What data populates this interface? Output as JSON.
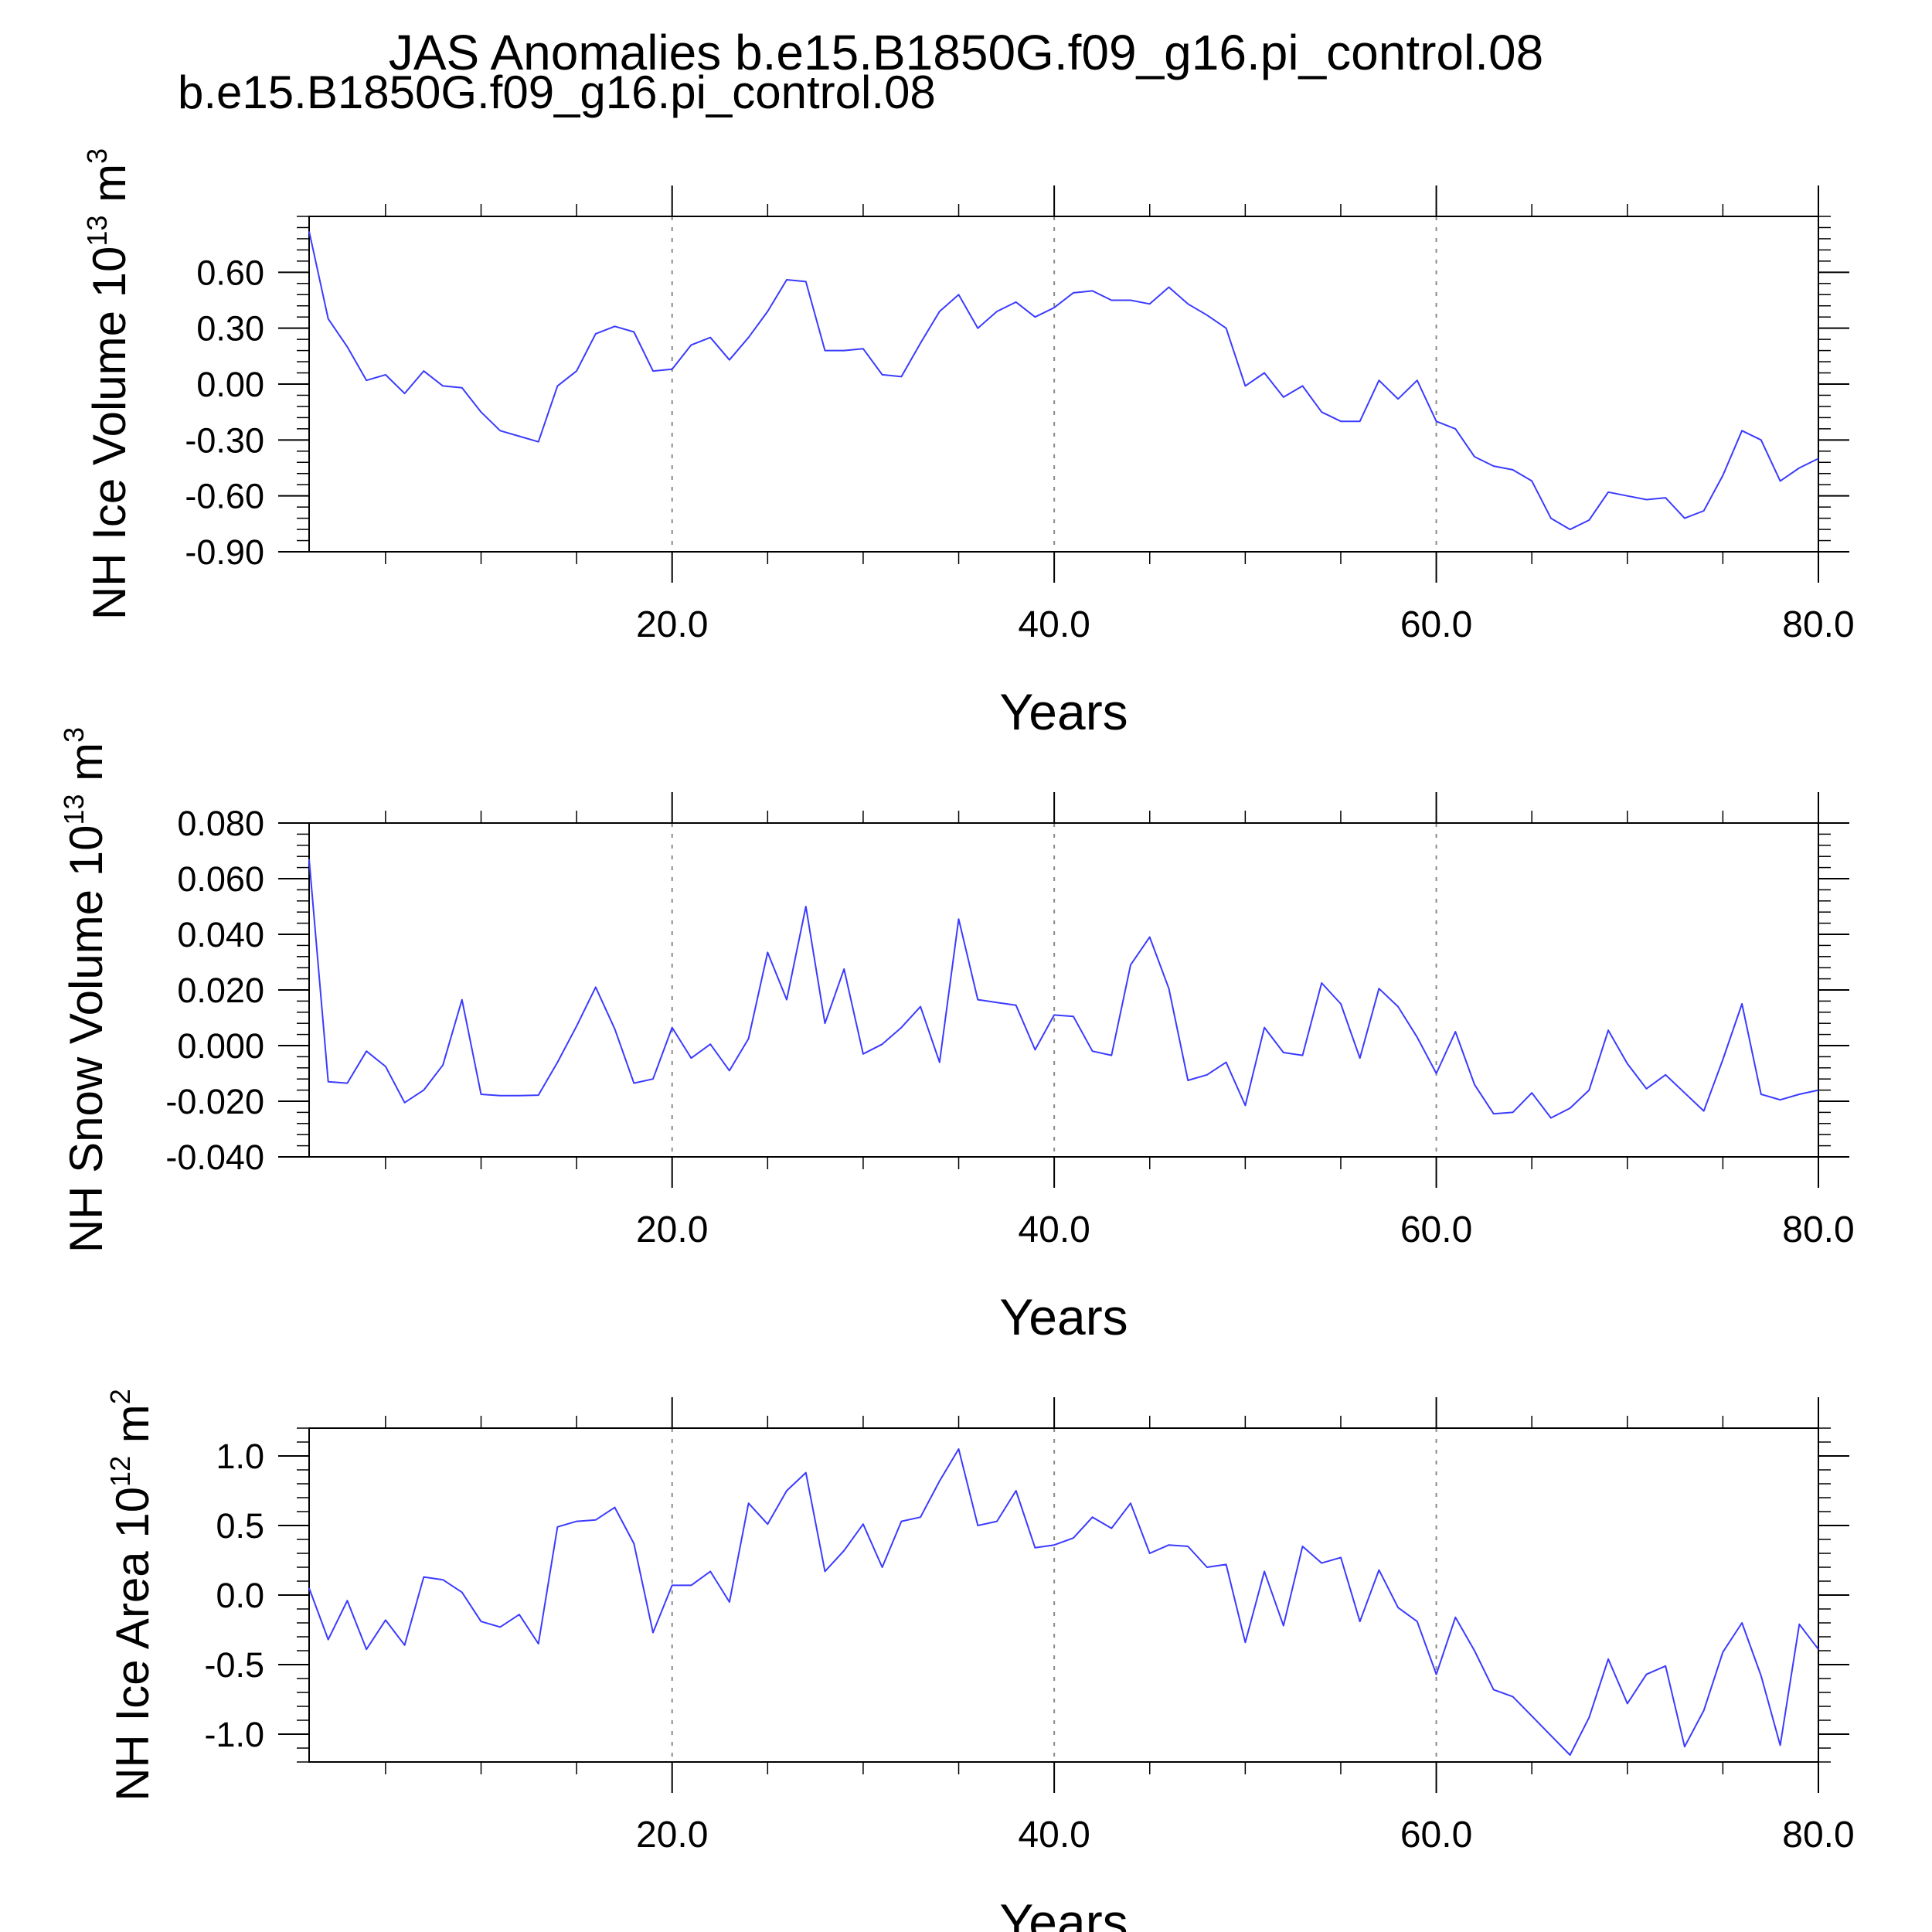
{
  "header": {
    "title": "JAS Anomalies b.e15.B1850G.f09_g16.pi_control.08",
    "subtitle": "b.e15.B1850G.f09_g16.pi_control.08",
    "subtitle_color": "#0000ff"
  },
  "colors": {
    "series": "#3b3bff",
    "grid": "#8a8a8a",
    "frame": "#000000"
  },
  "chart_data": [
    {
      "type": "line",
      "ylabel_main": "NH Ice Volume 10",
      "ylabel_exp": "13",
      "ylabel_unit": " m",
      "ylabel_unit_exp": "3",
      "xlabel": "Years",
      "xlim": [
        1,
        80
      ],
      "ylim": [
        -0.9,
        0.9
      ],
      "yticks": [
        -0.9,
        -0.6,
        -0.3,
        0.0,
        0.3,
        0.6
      ],
      "ytick_labels": [
        "-0.90",
        "-0.60",
        "-0.30",
        "0.00",
        "0.30",
        "0.60"
      ],
      "ytick_minor": 0.06,
      "xticks": [
        20,
        40,
        60,
        80
      ],
      "xtick_labels": [
        "20.0",
        "40.0",
        "60.0",
        "80.0"
      ],
      "xtick_minor": 5,
      "grid_x": [
        20,
        40,
        60
      ],
      "x": [
        1,
        2,
        3,
        4,
        5,
        6,
        7,
        8,
        9,
        10,
        11,
        12,
        13,
        14,
        15,
        16,
        17,
        18,
        19,
        20,
        21,
        22,
        23,
        24,
        25,
        26,
        27,
        28,
        29,
        30,
        31,
        32,
        33,
        34,
        35,
        36,
        37,
        38,
        39,
        40,
        41,
        42,
        43,
        44,
        45,
        46,
        47,
        48,
        49,
        50,
        51,
        52,
        53,
        54,
        55,
        56,
        57,
        58,
        59,
        60,
        61,
        62,
        63,
        64,
        65,
        66,
        67,
        68,
        69,
        70,
        71,
        72,
        73,
        74,
        75,
        76,
        77,
        78,
        79,
        80
      ],
      "series": [
        {
          "values": [
            0.82,
            0.35,
            0.2,
            0.02,
            0.05,
            -0.05,
            0.07,
            -0.01,
            -0.02,
            -0.15,
            -0.25,
            -0.28,
            -0.31,
            -0.01,
            0.07,
            0.27,
            0.31,
            0.28,
            0.07,
            0.08,
            0.21,
            0.25,
            0.13,
            0.25,
            0.39,
            0.56,
            0.55,
            0.18,
            0.18,
            0.19,
            0.05,
            0.04,
            0.22,
            0.39,
            0.48,
            0.3,
            0.39,
            0.44,
            0.36,
            0.41,
            0.49,
            0.5,
            0.45,
            0.45,
            0.43,
            0.52,
            0.43,
            0.37,
            0.3,
            -0.01,
            0.06,
            -0.07,
            -0.01,
            -0.15,
            -0.2,
            -0.2,
            0.02,
            -0.08,
            0.02,
            -0.2,
            -0.24,
            -0.39,
            -0.44,
            -0.46,
            -0.52,
            -0.72,
            -0.78,
            -0.73,
            -0.58,
            -0.6,
            -0.62,
            -0.61,
            -0.72,
            -0.68,
            -0.49,
            -0.25,
            -0.3,
            -0.52,
            -0.45,
            -0.4
          ]
        }
      ]
    },
    {
      "type": "line",
      "ylabel_main": "NH Snow Volume 10",
      "ylabel_exp": "13",
      "ylabel_unit": " m",
      "ylabel_unit_exp": "3",
      "xlabel": "Years",
      "xlim": [
        1,
        80
      ],
      "ylim": [
        -0.04,
        0.08
      ],
      "yticks": [
        -0.04,
        -0.02,
        0.0,
        0.02,
        0.04,
        0.06,
        0.08
      ],
      "ytick_labels": [
        "-0.040",
        "-0.020",
        "0.000",
        "0.020",
        "0.040",
        "0.060",
        "0.080"
      ],
      "ytick_minor": 0.004,
      "xticks": [
        20,
        40,
        60,
        80
      ],
      "xtick_labels": [
        "20.0",
        "40.0",
        "60.0",
        "80.0"
      ],
      "xtick_minor": 5,
      "grid_x": [
        20,
        40,
        60
      ],
      "x": [
        1,
        2,
        3,
        4,
        5,
        6,
        7,
        8,
        9,
        10,
        11,
        12,
        13,
        14,
        15,
        16,
        17,
        18,
        19,
        20,
        21,
        22,
        23,
        24,
        25,
        26,
        27,
        28,
        29,
        30,
        31,
        32,
        33,
        34,
        35,
        36,
        37,
        38,
        39,
        40,
        41,
        42,
        43,
        44,
        45,
        46,
        47,
        48,
        49,
        50,
        51,
        52,
        53,
        54,
        55,
        56,
        57,
        58,
        59,
        60,
        61,
        62,
        63,
        64,
        65,
        66,
        67,
        68,
        69,
        70,
        71,
        72,
        73,
        74,
        75,
        76,
        77,
        78,
        79,
        80
      ],
      "series": [
        {
          "values": [
            0.067,
            -0.013,
            -0.0135,
            -0.002,
            -0.0075,
            -0.0205,
            -0.016,
            -0.007,
            0.0165,
            -0.0175,
            -0.018,
            -0.018,
            -0.0178,
            -0.006,
            0.007,
            0.021,
            0.006,
            -0.0135,
            -0.012,
            0.0065,
            -0.0045,
            0.0005,
            -0.009,
            0.0025,
            0.0335,
            0.0165,
            0.05,
            0.008,
            0.0275,
            -0.003,
            0.0005,
            0.0065,
            0.014,
            -0.006,
            0.0455,
            0.0165,
            0.0155,
            0.0145,
            -0.0015,
            0.011,
            0.0105,
            -0.002,
            -0.0035,
            0.029,
            0.039,
            0.0205,
            -0.0125,
            -0.0105,
            -0.006,
            -0.0215,
            0.0065,
            -0.0025,
            -0.0035,
            0.0225,
            0.015,
            -0.0045,
            0.0205,
            0.014,
            0.003,
            -0.01,
            0.005,
            -0.014,
            -0.0245,
            -0.024,
            -0.017,
            -0.026,
            -0.0225,
            -0.016,
            0.0055,
            -0.0065,
            -0.0155,
            -0.0105,
            -0.017,
            -0.0235,
            -0.005,
            0.015,
            -0.0175,
            -0.0195,
            -0.0175,
            -0.016
          ]
        }
      ]
    },
    {
      "type": "line",
      "ylabel_main": "NH Ice Area 10",
      "ylabel_exp": "12",
      "ylabel_unit": " m",
      "ylabel_unit_exp": "2",
      "xlabel": "Years",
      "xlim": [
        1,
        80
      ],
      "ylim": [
        -1.2,
        1.2
      ],
      "yticks": [
        -1.0,
        -0.5,
        0.0,
        0.5,
        1.0
      ],
      "ytick_labels": [
        "-1.0",
        "-0.5",
        "0.0",
        "0.5",
        "1.0"
      ],
      "ytick_minor": 0.1,
      "xticks": [
        20,
        40,
        60,
        80
      ],
      "xtick_labels": [
        "20.0",
        "40.0",
        "60.0",
        "80.0"
      ],
      "xtick_minor": 5,
      "grid_x": [
        20,
        40,
        60
      ],
      "x": [
        1,
        2,
        3,
        4,
        5,
        6,
        7,
        8,
        9,
        10,
        11,
        12,
        13,
        14,
        15,
        16,
        17,
        18,
        19,
        20,
        21,
        22,
        23,
        24,
        25,
        26,
        27,
        28,
        29,
        30,
        31,
        32,
        33,
        34,
        35,
        36,
        37,
        38,
        39,
        40,
        41,
        42,
        43,
        44,
        45,
        46,
        47,
        48,
        49,
        50,
        51,
        52,
        53,
        54,
        55,
        56,
        57,
        58,
        59,
        60,
        61,
        62,
        63,
        64,
        65,
        66,
        67,
        68,
        69,
        70,
        71,
        72,
        73,
        74,
        75,
        76,
        77,
        78,
        79,
        80
      ],
      "series": [
        {
          "values": [
            0.05,
            -0.32,
            -0.04,
            -0.39,
            -0.18,
            -0.36,
            0.13,
            0.11,
            0.02,
            -0.19,
            -0.23,
            -0.14,
            -0.35,
            0.49,
            0.53,
            0.54,
            0.63,
            0.37,
            -0.27,
            0.07,
            0.07,
            0.17,
            -0.05,
            0.66,
            0.51,
            0.75,
            0.88,
            0.17,
            0.32,
            0.51,
            0.2,
            0.53,
            0.56,
            0.82,
            1.05,
            0.5,
            0.53,
            0.75,
            0.34,
            0.36,
            0.41,
            0.56,
            0.48,
            0.66,
            0.3,
            0.36,
            0.35,
            0.2,
            0.22,
            -0.34,
            0.17,
            -0.22,
            0.35,
            0.23,
            0.27,
            -0.19,
            0.18,
            -0.09,
            -0.19,
            -0.57,
            -0.16,
            -0.4,
            -0.68,
            -0.73,
            -0.87,
            -1.01,
            -1.15,
            -0.88,
            -0.46,
            -0.78,
            -0.57,
            -0.51,
            -1.09,
            -0.83,
            -0.41,
            -0.2,
            -0.58,
            -1.08,
            -0.21,
            -0.39
          ]
        }
      ]
    }
  ]
}
